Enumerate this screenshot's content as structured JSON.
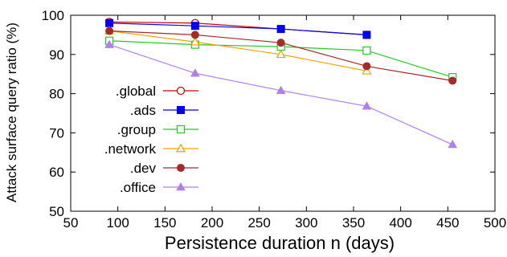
{
  "chart_data": {
    "type": "line",
    "xlabel": "Persistence duration n (days)",
    "ylabel": "Attack surface query ratio (%)",
    "xlim": [
      50,
      500
    ],
    "ylim": [
      50,
      100
    ],
    "x_ticks": [
      50,
      100,
      150,
      200,
      250,
      300,
      350,
      400,
      450,
      500
    ],
    "y_ticks": [
      50,
      60,
      70,
      80,
      90,
      100
    ],
    "grid": false,
    "legend_position": "left-center",
    "series": [
      {
        "name": ".global",
        "color": "#cc0000",
        "marker": "circle-open",
        "x": [
          91,
          182,
          273,
          364
        ],
        "y": [
          98.3,
          98.0,
          96.5,
          95.0
        ]
      },
      {
        "name": ".ads",
        "color": "#0000ee",
        "marker": "square-filled",
        "x": [
          91,
          182,
          273,
          364
        ],
        "y": [
          98.0,
          97.3,
          96.5,
          95.0
        ]
      },
      {
        "name": ".group",
        "color": "#22cc22",
        "marker": "square-open",
        "x": [
          91,
          182,
          273,
          364,
          455
        ],
        "y": [
          93.5,
          92.5,
          92.0,
          91.0,
          84.2
        ]
      },
      {
        "name": ".network",
        "color": "#f0a000",
        "marker": "triangle-open",
        "x": [
          91,
          182,
          273,
          364
        ],
        "y": [
          96.0,
          93.2,
          90.0,
          85.8
        ]
      },
      {
        "name": ".dev",
        "color": "#a52a2a",
        "marker": "circle-filled",
        "x": [
          91,
          182,
          273,
          364,
          455
        ],
        "y": [
          96.0,
          95.0,
          93.0,
          87.0,
          83.3
        ]
      },
      {
        "name": ".office",
        "color": "#b07ff0",
        "marker": "triangle-filled",
        "x": [
          91,
          182,
          273,
          364,
          455
        ],
        "y": [
          92.5,
          85.2,
          80.8,
          76.8,
          67.0
        ]
      }
    ]
  }
}
